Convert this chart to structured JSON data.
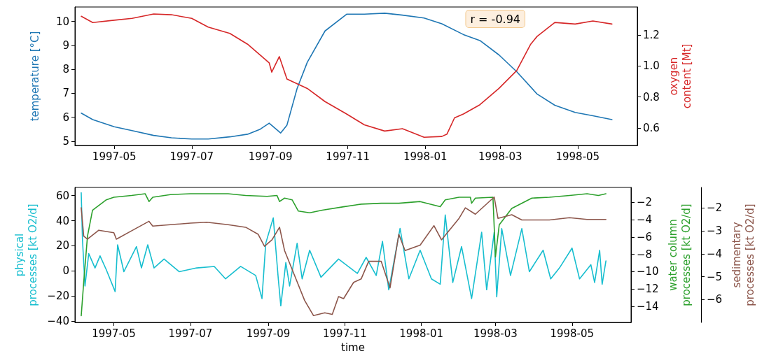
{
  "chart_data": [
    {
      "type": "line",
      "ylabel": "temperature [°C]",
      "y2label": "oxygen\ncontent [Mt]",
      "annotations": [
        "r = -0.94"
      ],
      "xlim": [
        "1997-03-31",
        "1998-06-17"
      ],
      "xticks": [
        "1997-05",
        "1997-07",
        "1997-09",
        "1997-11",
        "1998-01",
        "1998-03",
        "1998-05"
      ],
      "ylim": [
        4.82,
        10.6
      ],
      "yticks": [
        5,
        6,
        7,
        8,
        9,
        10
      ],
      "y2lim": [
        0.487,
        1.38
      ],
      "y2ticks": [
        0.6,
        0.8,
        {
          "value": 1,
          "label": "1.0"
        },
        1.2
      ],
      "series": [
        {
          "color": "#1f77b4",
          "x": [
            "1997-04-05",
            "1997-04-14",
            "1997-05-01",
            "1997-05-15",
            "1997-06-01",
            "1997-06-15",
            "1997-07-01",
            "1997-07-14",
            "1997-07-31",
            "1997-08-14",
            "1997-08-24",
            "1997-08-31",
            "1997-09-09",
            "1997-09-14",
            "1997-09-22",
            "1997-09-30",
            "1997-10-14",
            "1997-10-31",
            "1997-11-14",
            "1997-11-30",
            "1997-12-14",
            "1997-12-31",
            "1998-01-14",
            "1998-01-31",
            "1998-02-13",
            "1998-02-28",
            "1998-03-14",
            "1998-03-30",
            "1998-04-13",
            "1998-04-29",
            "1998-05-13",
            "1998-05-28"
          ],
          "values": [
            6.17,
            5.9,
            5.6,
            5.44,
            5.24,
            5.14,
            5.09,
            5.09,
            5.18,
            5.29,
            5.5,
            5.75,
            5.34,
            5.67,
            7.2,
            8.29,
            9.6,
            10.3,
            10.3,
            10.34,
            10.26,
            10.14,
            9.9,
            9.45,
            9.2,
            8.6,
            7.9,
            6.97,
            6.5,
            6.2,
            6.06,
            5.9
          ]
        },
        {
          "color": "#d62728",
          "axis": "y2",
          "x": [
            "1997-04-05",
            "1997-04-14",
            "1997-05-01",
            "1997-05-15",
            "1997-06-01",
            "1997-06-15",
            "1997-07-01",
            "1997-07-14",
            "1997-07-31",
            "1997-08-14",
            "1997-08-31",
            "1997-09-02",
            "1997-09-08",
            "1997-09-14",
            "1997-09-30",
            "1997-10-14",
            "1997-10-31",
            "1997-11-14",
            "1997-11-30",
            "1997-12-14",
            "1997-12-31",
            "1998-01-14",
            "1998-01-18",
            "1998-01-24",
            "1998-01-31",
            "1998-02-13",
            "1998-02-28",
            "1998-03-14",
            "1998-03-25",
            "1998-03-30",
            "1998-04-13",
            "1998-04-29",
            "1998-05-13",
            "1998-05-28"
          ],
          "values": [
            1.32,
            1.28,
            1.295,
            1.307,
            1.335,
            1.33,
            1.307,
            1.25,
            1.21,
            1.14,
            1.02,
            0.96,
            1.06,
            0.915,
            0.855,
            0.77,
            0.69,
            0.62,
            0.58,
            0.595,
            0.54,
            0.545,
            0.56,
            0.665,
            0.69,
            0.75,
            0.855,
            0.97,
            1.14,
            1.19,
            1.28,
            1.27,
            1.29,
            1.27
          ]
        }
      ]
    },
    {
      "type": "line",
      "xlabel": "time",
      "ylabel": "physical\nprocesses [kt O2/d]",
      "y2label": "water column\nprocesses [kt O2/d]",
      "y3label": "sedimentary\nprocesses [kt O2/d]",
      "xlim": [
        "1997-03-31",
        "1998-06-17"
      ],
      "xticks": [
        "1997-05",
        "1997-07",
        "1997-09",
        "1997-11",
        "1998-01",
        "1998-03",
        "1998-05"
      ],
      "ylim": [
        -41,
        66.5
      ],
      "yticks": [
        {
          "value": -40,
          "label": "−40"
        },
        {
          "value": -20,
          "label": "−20"
        },
        0,
        20,
        40,
        60
      ],
      "y2lim": [
        -15.87,
        -0.27
      ],
      "y2ticks": [
        {
          "value": -14,
          "label": "−14"
        },
        {
          "value": -12,
          "label": "−12"
        },
        {
          "value": -10,
          "label": "−10"
        },
        {
          "value": -8,
          "label": "−8"
        },
        {
          "value": -6,
          "label": "−6"
        },
        {
          "value": -4,
          "label": "−4"
        },
        {
          "value": -2,
          "label": "−2"
        }
      ],
      "y3lim": [
        -7.0,
        -1.1
      ],
      "y3ticks": [
        {
          "value": -6,
          "label": "−6"
        },
        {
          "value": -5,
          "label": "−5"
        },
        {
          "value": -4,
          "label": "−4"
        },
        {
          "value": -3,
          "label": "−3"
        },
        {
          "value": -2,
          "label": "−2"
        }
      ],
      "series": [
        {
          "color": "#17becf",
          "x": [
            "1997-04-05",
            "1997-04-06",
            "1997-04-08",
            "1997-04-11",
            "1997-04-16",
            "1997-04-20",
            "1997-04-25",
            "1997-05-02",
            "1997-05-04",
            "1997-05-09",
            "1997-05-19",
            "1997-05-23",
            "1997-05-28",
            "1997-06-02",
            "1997-06-10",
            "1997-06-22",
            "1997-07-06",
            "1997-07-20",
            "1997-07-29",
            "1997-08-10",
            "1997-08-22",
            "1997-08-27",
            "1997-08-30",
            "1997-09-05",
            "1997-09-09",
            "1997-09-11",
            "1997-09-15",
            "1997-09-18",
            "1997-09-24",
            "1997-09-28",
            "1997-10-04",
            "1997-10-13",
            "1997-10-27",
            "1997-11-11",
            "1997-11-18",
            "1997-11-26",
            "1997-12-01",
            "1997-12-06",
            "1997-12-15",
            "1997-12-22",
            "1997-12-31",
            "1998-01-09",
            "1998-01-16",
            "1998-01-20",
            "1998-01-26",
            "1998-02-02",
            "1998-02-10",
            "1998-02-18",
            "1998-02-22",
            "1998-02-28",
            "1998-03-02",
            "1998-03-06",
            "1998-03-13",
            "1998-03-22",
            "1998-03-28",
            "1998-04-08",
            "1998-04-14",
            "1998-04-21",
            "1998-05-01",
            "1998-05-07",
            "1998-05-16",
            "1998-05-19",
            "1998-05-23",
            "1998-05-25",
            "1998-05-28"
          ],
          "values": [
            62.3,
            25,
            -12,
            13.8,
            2.4,
            12,
            0.9,
            -16.4,
            20.8,
            -0.6,
            19.4,
            2.4,
            20.8,
            2.4,
            9.5,
            -0.6,
            2.4,
            3.6,
            -6.3,
            3.6,
            -3.6,
            -22,
            22,
            42.3,
            -6.3,
            -27.8,
            6.7,
            -12,
            22,
            -6.3,
            16.5,
            -5,
            9.5,
            -2,
            10.8,
            -3.6,
            23.6,
            -15,
            33.9,
            -6.3,
            16.5,
            -6.3,
            -10.6,
            44.6,
            -9.2,
            19.4,
            -22,
            30.8,
            -15,
            30.8,
            -20.6,
            33.7,
            -3.6,
            33.7,
            -0.6,
            16.5,
            -6.3,
            2.4,
            18.2,
            -6.3,
            5,
            -9.2,
            16.5,
            -10.6,
            8
          ]
        },
        {
          "color": "#2ca02c",
          "axis": "y2",
          "x": [
            "1997-04-05",
            "1997-04-07",
            "1997-04-10",
            "1997-04-14",
            "1997-04-25",
            "1997-05-01",
            "1997-05-15",
            "1997-05-26",
            "1997-05-29",
            "1997-06-01",
            "1997-06-15",
            "1997-07-01",
            "1997-07-31",
            "1997-08-14",
            "1997-08-31",
            "1997-09-08",
            "1997-09-10",
            "1997-09-14",
            "1997-09-20",
            "1997-09-25",
            "1997-10-04",
            "1997-10-14",
            "1997-10-31",
            "1997-11-14",
            "1997-11-30",
            "1997-12-14",
            "1997-12-31",
            "1998-01-16",
            "1998-01-20",
            "1998-01-31",
            "1998-02-09",
            "1998-02-10",
            "1998-02-13",
            "1998-02-27",
            "1998-03-01",
            "1998-03-04",
            "1998-03-14",
            "1998-03-30",
            "1998-04-13",
            "1998-04-29",
            "1998-05-13",
            "1998-05-22",
            "1998-05-28"
          ],
          "values": [
            -15.1,
            -11.2,
            -5.9,
            -2.9,
            -1.7,
            -1.4,
            -1.2,
            -1.0,
            -1.9,
            -1.4,
            -1.1,
            -1.0,
            -1.0,
            -1.2,
            -1.3,
            -1.2,
            -1.9,
            -1.5,
            -1.7,
            -3.0,
            -3.2,
            -2.9,
            -2.5,
            -2.2,
            -2.1,
            -2.1,
            -1.9,
            -2.5,
            -1.7,
            -1.4,
            -1.4,
            -2.1,
            -1.5,
            -1.4,
            -8.3,
            -4.6,
            -2.7,
            -1.5,
            -1.4,
            -1.2,
            -1.0,
            -1.2,
            -1.0
          ]
        },
        {
          "color": "#8c564b",
          "axis": "y3",
          "x": [
            "1997-04-05",
            "1997-04-07",
            "1997-04-10",
            "1997-04-19",
            "1997-05-01",
            "1997-05-03",
            "1997-05-15",
            "1997-05-29",
            "1997-06-01",
            "1997-06-15",
            "1997-07-01",
            "1997-07-14",
            "1997-07-31",
            "1997-08-14",
            "1997-08-24",
            "1997-08-29",
            "1997-09-04",
            "1997-09-10",
            "1997-09-14",
            "1997-09-22",
            "1997-09-30",
            "1997-10-07",
            "1997-10-16",
            "1997-10-22",
            "1997-10-27",
            "1997-10-31",
            "1997-11-08",
            "1997-11-14",
            "1997-11-20",
            "1997-11-30",
            "1997-12-07",
            "1997-12-14",
            "1997-12-19",
            "1997-12-31",
            "1998-01-11",
            "1998-01-17",
            "1998-01-31",
            "1998-02-05",
            "1998-02-13",
            "1998-02-28",
            "1998-03-03",
            "1998-03-14",
            "1998-03-22",
            "1998-03-30",
            "1998-04-13",
            "1998-04-29",
            "1998-05-13",
            "1998-05-28"
          ],
          "values": [
            -1.99,
            -3.23,
            -3.36,
            -2.97,
            -3.08,
            -3.36,
            -3.0,
            -2.58,
            -2.79,
            -2.73,
            -2.66,
            -2.62,
            -2.73,
            -2.84,
            -3.15,
            -3.67,
            -3.39,
            -2.84,
            -3.86,
            -4.95,
            -6.04,
            -6.7,
            -6.58,
            -6.65,
            -5.87,
            -5.96,
            -5.25,
            -5.1,
            -4.33,
            -4.33,
            -5.49,
            -3.15,
            -3.86,
            -3.62,
            -2.77,
            -3.39,
            -2.45,
            -1.99,
            -2.27,
            -1.52,
            -2.45,
            -2.29,
            -2.52,
            -2.52,
            -2.52,
            -2.42,
            -2.5,
            -2.5
          ]
        }
      ]
    }
  ]
}
